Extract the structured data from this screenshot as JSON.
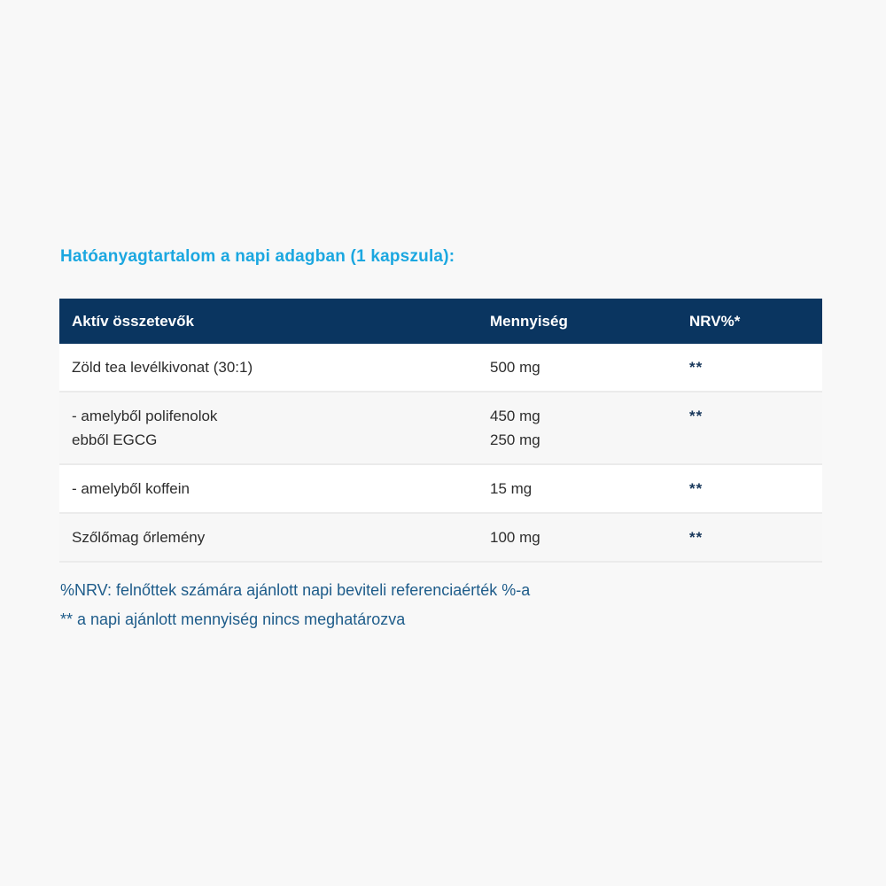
{
  "page": {
    "background_color": "#f8f8f8"
  },
  "title": {
    "text": "Hatóanyagtartalom a napi adagban (1 kapszula):",
    "color": "#1ba7e0"
  },
  "table": {
    "header": {
      "background_color": "#0a3560",
      "text_color": "#ffffff",
      "col_ingredient": "Aktív összetevők",
      "col_amount": "Mennyiség",
      "col_nrv": "NRV%*"
    },
    "rows": [
      {
        "ingredient_lines": [
          "Zöld tea levélkivonat (30:1)"
        ],
        "amount_lines": [
          "500 mg"
        ],
        "nrv": "**"
      },
      {
        "ingredient_lines": [
          "- amelyből polifenolok",
          "ebből EGCG"
        ],
        "amount_lines": [
          "450 mg",
          "250 mg"
        ],
        "nrv": "**"
      },
      {
        "ingredient_lines": [
          "- amelyből koffein"
        ],
        "amount_lines": [
          "15 mg"
        ],
        "nrv": "**"
      },
      {
        "ingredient_lines": [
          "Szőlőmag őrlemény"
        ],
        "amount_lines": [
          "100 mg"
        ],
        "nrv": "**"
      }
    ]
  },
  "footnotes": [
    "%NRV: felnőttek számára ajánlott napi beviteli referenciaérték %-a",
    "** a napi ajánlott mennyiség nincs meghatározva"
  ]
}
